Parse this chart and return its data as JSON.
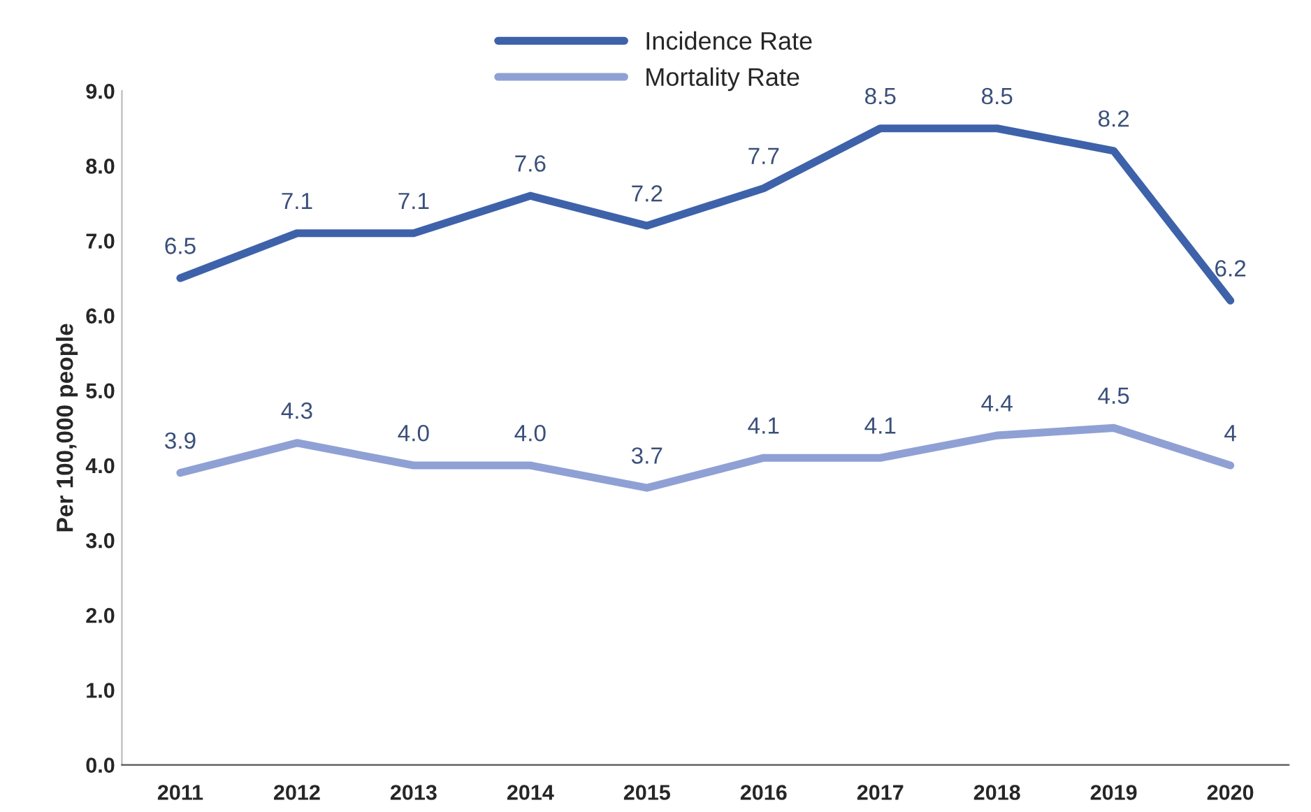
{
  "chart_data": {
    "type": "line",
    "ylabel": "Per 100,000 people",
    "categories": [
      "2011",
      "2012",
      "2013",
      "2014",
      "2015",
      "2016",
      "2017",
      "2018",
      "2019",
      "2020"
    ],
    "series": [
      {
        "name": "Incidence Rate",
        "color": "#3e62aa",
        "values": [
          6.5,
          7.1,
          7.1,
          7.6,
          7.2,
          7.7,
          8.5,
          8.5,
          8.2,
          6.2
        ],
        "value_labels": [
          "6.5",
          "7.1",
          "7.1",
          "7.6",
          "7.2",
          "7.7",
          "8.5",
          "8.5",
          "8.2",
          "6.2"
        ]
      },
      {
        "name": "Mortality Rate",
        "color": "#8fa0d4",
        "values": [
          3.9,
          4.3,
          4.0,
          4.0,
          3.7,
          4.1,
          4.1,
          4.4,
          4.5,
          4.0
        ],
        "value_labels": [
          "3.9",
          "4.3",
          "4.0",
          "4.0",
          "3.7",
          "4.1",
          "4.1",
          "4.4",
          "4.5",
          "4"
        ]
      }
    ],
    "ylim": [
      0,
      9
    ],
    "yticks": [
      {
        "value": 0,
        "label": "0.0"
      },
      {
        "value": 1,
        "label": "1.0"
      },
      {
        "value": 2,
        "label": "2.0"
      },
      {
        "value": 3,
        "label": "3.0"
      },
      {
        "value": 4,
        "label": "4.0"
      },
      {
        "value": 5,
        "label": "5.0"
      },
      {
        "value": 6,
        "label": "6.0"
      },
      {
        "value": 7,
        "label": "7.0"
      },
      {
        "value": 8,
        "label": "8.0"
      },
      {
        "value": 9,
        "label": "9.0"
      }
    ],
    "grid": false,
    "legend": "top",
    "marker": "none",
    "line_style": "solid"
  }
}
